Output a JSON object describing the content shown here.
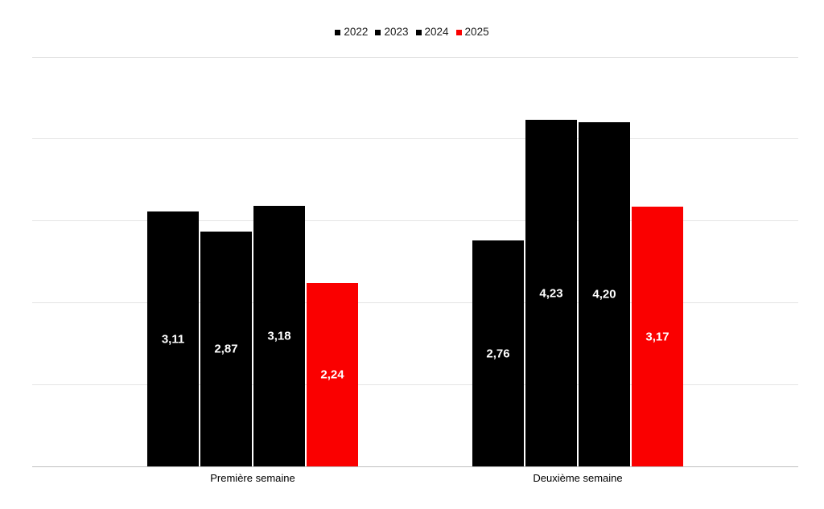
{
  "chart_data": {
    "type": "bar",
    "title": "",
    "xlabel": "",
    "ylabel": "",
    "categories": [
      "Première semaine",
      "Deuxième semaine"
    ],
    "series": [
      {
        "name": "2022",
        "color": "#000000",
        "values": [
          3.11,
          2.76
        ],
        "labels": [
          "3,11",
          "2,76"
        ]
      },
      {
        "name": "2023",
        "color": "#000000",
        "values": [
          2.87,
          4.23
        ],
        "labels": [
          "2,87",
          "4,23"
        ]
      },
      {
        "name": "2024",
        "color": "#000000",
        "values": [
          3.18,
          4.2
        ],
        "labels": [
          "3,18",
          "4,20"
        ]
      },
      {
        "name": "2025",
        "color": "#fa0000",
        "values": [
          2.24,
          3.17
        ],
        "labels": [
          "2,24",
          "3,17"
        ]
      }
    ],
    "ylim": [
      0,
      5
    ],
    "gridline_values": [
      1,
      2,
      3,
      4,
      5
    ],
    "grid": true,
    "yticks_shown": false,
    "legend_position": "top-center",
    "value_label_color": "#ffffff",
    "axis_line_color": "#bfbfbf",
    "gridline_color": "#e4e4e4"
  }
}
